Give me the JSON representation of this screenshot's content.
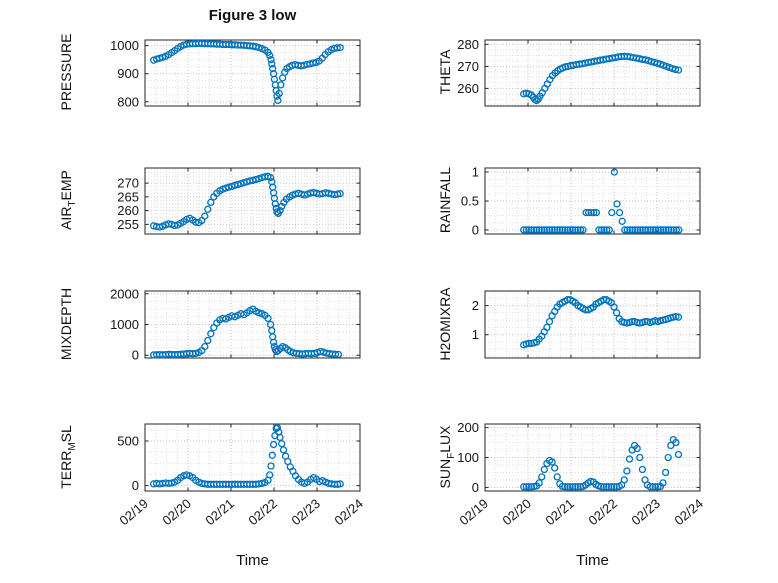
{
  "figure": {
    "title": "Figure 3 low",
    "xlabel": "Time",
    "accent": "#0072BD",
    "grid_color": "#d9d9d9",
    "xlim": [
      19,
      24
    ],
    "x_ticks": [
      19,
      20,
      21,
      22,
      23,
      24
    ],
    "x_tick_labels": [
      "02/19",
      "02/20",
      "02/21",
      "02/22",
      "02/23",
      "02/24"
    ]
  },
  "chart_data": [
    {
      "type": "scatter",
      "name": "PRESSURE",
      "ylabel": {
        "pre": "PRESSURE",
        "sub": "",
        "post": ""
      },
      "ylim": [
        785,
        1020
      ],
      "yticks": [
        800,
        900,
        1000
      ],
      "ytick_labels": [
        "800",
        "900",
        "1000"
      ],
      "x": [
        19.2,
        19.27,
        19.34,
        19.41,
        19.48,
        19.55,
        19.62,
        19.69,
        19.76,
        19.83,
        19.9,
        19.97,
        20.04,
        20.11,
        20.18,
        20.25,
        20.32,
        20.39,
        20.46,
        20.53,
        20.6,
        20.67,
        20.74,
        20.81,
        20.88,
        20.95,
        21.02,
        21.09,
        21.16,
        21.23,
        21.3,
        21.37,
        21.44,
        21.51,
        21.58,
        21.65,
        21.72,
        21.79,
        21.86,
        21.9,
        21.93,
        21.95,
        21.97,
        21.99,
        22.01,
        22.03,
        22.05,
        22.07,
        22.09,
        22.12,
        22.16,
        22.2,
        22.25,
        22.3,
        22.36,
        22.42,
        22.49,
        22.56,
        22.63,
        22.7,
        22.77,
        22.84,
        22.91,
        22.98,
        23.05,
        23.12,
        23.19,
        23.26,
        23.33,
        23.4,
        23.47,
        23.54
      ],
      "y": [
        948,
        952,
        955,
        958,
        962,
        968,
        975,
        982,
        990,
        997,
        1002,
        1005,
        1006,
        1007,
        1007,
        1008,
        1008,
        1007,
        1007,
        1006,
        1006,
        1005,
        1005,
        1004,
        1004,
        1004,
        1003,
        1003,
        1002,
        1002,
        1001,
        1000,
        999,
        998,
        996,
        993,
        989,
        984,
        976,
        965,
        950,
        935,
        918,
        900,
        880,
        860,
        840,
        820,
        805,
        830,
        860,
        885,
        905,
        918,
        925,
        930,
        932,
        930,
        928,
        930,
        933,
        935,
        938,
        940,
        945,
        955,
        968,
        978,
        985,
        990,
        992,
        993
      ]
    },
    {
      "type": "scatter",
      "name": "THETA",
      "ylabel": {
        "pre": "THETA",
        "sub": "",
        "post": ""
      },
      "ylim": [
        252,
        282
      ],
      "yticks": [
        260,
        270,
        280
      ],
      "ytick_labels": [
        "260",
        "270",
        "280"
      ],
      "x": [
        19.9,
        19.96,
        20.02,
        20.08,
        20.12,
        20.16,
        20.2,
        20.24,
        20.28,
        20.33,
        20.39,
        20.45,
        20.51,
        20.57,
        20.63,
        20.69,
        20.75,
        20.81,
        20.87,
        20.93,
        20.99,
        21.05,
        21.12,
        21.19,
        21.26,
        21.33,
        21.4,
        21.47,
        21.54,
        21.61,
        21.68,
        21.75,
        21.82,
        21.89,
        21.96,
        22.03,
        22.1,
        22.17,
        22.24,
        22.31,
        22.38,
        22.45,
        22.52,
        22.59,
        22.66,
        22.73,
        22.8,
        22.87,
        22.94,
        23.01,
        23.08,
        23.15,
        23.22,
        23.29,
        23.36,
        23.43,
        23.5
      ],
      "y": [
        257.5,
        257.8,
        257.5,
        257.0,
        256.0,
        255.0,
        254.5,
        255.2,
        256.5,
        258.0,
        260.0,
        262.0,
        264.0,
        265.8,
        267.0,
        268.0,
        268.8,
        269.3,
        269.8,
        270.0,
        270.3,
        270.5,
        270.8,
        271.0,
        271.2,
        271.5,
        271.8,
        272.0,
        272.3,
        272.5,
        272.8,
        273.0,
        273.3,
        273.5,
        273.8,
        274.0,
        274.3,
        274.5,
        274.6,
        274.5,
        274.3,
        274.0,
        273.8,
        273.5,
        273.2,
        273.0,
        272.6,
        272.2,
        271.8,
        271.4,
        271.0,
        270.5,
        270.0,
        269.5,
        269.0,
        268.6,
        268.3
      ]
    },
    {
      "type": "scatter",
      "name": "AIR_TEMP",
      "ylabel": {
        "pre": "AIR",
        "sub": "T",
        "post": "EMP"
      },
      "ylim": [
        251.5,
        275.5
      ],
      "yticks": [
        255,
        260,
        265,
        270
      ],
      "ytick_labels": [
        "255",
        "260",
        "265",
        "270"
      ],
      "x": [
        19.2,
        19.27,
        19.34,
        19.41,
        19.48,
        19.55,
        19.62,
        19.69,
        19.76,
        19.83,
        19.9,
        19.97,
        20.04,
        20.11,
        20.18,
        20.25,
        20.32,
        20.39,
        20.46,
        20.53,
        20.6,
        20.67,
        20.74,
        20.81,
        20.88,
        20.95,
        21.02,
        21.09,
        21.16,
        21.23,
        21.3,
        21.37,
        21.44,
        21.51,
        21.58,
        21.65,
        21.72,
        21.79,
        21.86,
        21.92,
        21.95,
        21.97,
        21.99,
        22.01,
        22.03,
        22.05,
        22.07,
        22.1,
        22.14,
        22.18,
        22.23,
        22.29,
        22.36,
        22.43,
        22.5,
        22.57,
        22.64,
        22.71,
        22.78,
        22.85,
        22.92,
        22.99,
        23.06,
        23.13,
        23.2,
        23.27,
        23.34,
        23.41,
        23.48,
        23.54
      ],
      "y": [
        254.5,
        254.2,
        254.0,
        254.3,
        254.8,
        255.2,
        255.0,
        254.6,
        254.8,
        255.4,
        256.0,
        256.8,
        257.2,
        256.6,
        255.8,
        255.6,
        256.4,
        258.0,
        260.5,
        263.0,
        265.0,
        266.3,
        267.2,
        267.8,
        268.2,
        268.5,
        268.8,
        269.2,
        269.5,
        269.8,
        270.2,
        270.5,
        270.8,
        271.0,
        271.3,
        271.6,
        272.0,
        272.3,
        272.5,
        272.0,
        270.5,
        268.5,
        266.5,
        264.5,
        262.5,
        260.8,
        259.5,
        259.0,
        260.0,
        261.5,
        263.0,
        264.2,
        265.0,
        265.6,
        266.0,
        266.3,
        266.0,
        265.7,
        266.0,
        266.4,
        266.6,
        266.3,
        266.0,
        266.2,
        266.5,
        266.3,
        266.0,
        265.8,
        266.0,
        266.2
      ]
    },
    {
      "type": "scatter",
      "name": "RAINFALL",
      "ylabel": {
        "pre": "RAINFALL",
        "sub": "",
        "post": ""
      },
      "ylim": [
        -0.07,
        1.07
      ],
      "yticks": [
        0,
        0.5,
        1
      ],
      "ytick_labels": [
        "0",
        "0.5",
        "1"
      ],
      "x": [
        19.9,
        19.96,
        20.02,
        20.08,
        20.14,
        20.2,
        20.26,
        20.32,
        20.38,
        20.44,
        20.5,
        20.56,
        20.62,
        20.68,
        20.74,
        20.8,
        20.86,
        20.92,
        20.98,
        21.04,
        21.1,
        21.16,
        21.22,
        21.28,
        21.35,
        21.41,
        21.47,
        21.53,
        21.59,
        21.65,
        21.71,
        21.77,
        21.83,
        21.89,
        21.95,
        22.01,
        22.07,
        22.13,
        22.19,
        22.25,
        22.31,
        22.37,
        22.43,
        22.49,
        22.55,
        22.61,
        22.67,
        22.73,
        22.79,
        22.85,
        22.91,
        22.97,
        23.03,
        23.09,
        23.15,
        23.21,
        23.27,
        23.33,
        23.39,
        23.45,
        23.51
      ],
      "y": [
        0,
        0,
        0,
        0,
        0,
        0,
        0,
        0,
        0,
        0,
        0,
        0,
        0,
        0,
        0,
        0,
        0,
        0,
        0,
        0,
        0,
        0,
        0,
        0,
        0.3,
        0.3,
        0.3,
        0.3,
        0.3,
        0,
        0,
        0,
        0,
        0,
        0.3,
        1,
        0.45,
        0.3,
        0.15,
        0,
        0,
        0,
        0,
        0,
        0,
        0,
        0,
        0,
        0,
        0,
        0,
        0,
        0,
        0,
        0,
        0,
        0,
        0,
        0,
        0,
        0
      ]
    },
    {
      "type": "scatter",
      "name": "MIXDEPTH",
      "ylabel": {
        "pre": "MIXDEPTH",
        "sub": "",
        "post": ""
      },
      "ylim": [
        -90,
        2090
      ],
      "yticks": [
        0,
        1000,
        2000
      ],
      "ytick_labels": [
        "0",
        "1000",
        "2000"
      ],
      "x": [
        19.2,
        19.27,
        19.34,
        19.41,
        19.48,
        19.55,
        19.62,
        19.69,
        19.76,
        19.83,
        19.9,
        19.97,
        20.04,
        20.11,
        20.18,
        20.25,
        20.32,
        20.39,
        20.46,
        20.53,
        20.6,
        20.67,
        20.74,
        20.81,
        20.88,
        20.95,
        21.02,
        21.09,
        21.16,
        21.23,
        21.3,
        21.37,
        21.44,
        21.51,
        21.58,
        21.65,
        21.72,
        21.79,
        21.86,
        21.92,
        21.95,
        21.97,
        21.99,
        22.01,
        22.03,
        22.06,
        22.1,
        22.15,
        22.2,
        22.26,
        22.32,
        22.38,
        22.45,
        22.52,
        22.59,
        22.66,
        22.73,
        22.8,
        22.87,
        22.94,
        23.01,
        23.08,
        23.15,
        23.22,
        23.29,
        23.36,
        23.43,
        23.5
      ],
      "y": [
        10,
        15,
        20,
        15,
        20,
        30,
        25,
        20,
        25,
        30,
        40,
        50,
        60,
        50,
        60,
        90,
        150,
        280,
        480,
        700,
        900,
        1050,
        1150,
        1200,
        1180,
        1230,
        1280,
        1250,
        1300,
        1350,
        1320,
        1380,
        1450,
        1500,
        1430,
        1380,
        1350,
        1300,
        1200,
        1000,
        800,
        600,
        420,
        280,
        180,
        120,
        150,
        220,
        280,
        250,
        180,
        120,
        80,
        60,
        50,
        40,
        50,
        60,
        50,
        60,
        90,
        120,
        100,
        70,
        50,
        40,
        30,
        25
      ]
    },
    {
      "type": "scatter",
      "name": "H2OMIXRA",
      "ylabel": {
        "pre": "H2OMIXRA",
        "sub": "",
        "post": ""
      },
      "ylim": [
        0.2,
        2.5
      ],
      "yticks": [
        1,
        2
      ],
      "ytick_labels": [
        "1",
        "2"
      ],
      "x": [
        19.9,
        19.96,
        20.02,
        20.08,
        20.14,
        20.2,
        20.26,
        20.32,
        20.38,
        20.44,
        20.5,
        20.56,
        20.62,
        20.68,
        20.74,
        20.8,
        20.86,
        20.92,
        20.98,
        21.04,
        21.1,
        21.16,
        21.22,
        21.28,
        21.34,
        21.4,
        21.46,
        21.52,
        21.58,
        21.64,
        21.7,
        21.76,
        21.82,
        21.88,
        21.94,
        22.0,
        22.06,
        22.12,
        22.18,
        22.24,
        22.3,
        22.36,
        22.42,
        22.48,
        22.54,
        22.6,
        22.66,
        22.72,
        22.78,
        22.84,
        22.9,
        22.96,
        23.02,
        23.08,
        23.14,
        23.2,
        23.26,
        23.32,
        23.38,
        23.44,
        23.5
      ],
      "y": [
        0.65,
        0.68,
        0.7,
        0.7,
        0.72,
        0.75,
        0.85,
        0.95,
        1.1,
        1.25,
        1.45,
        1.65,
        1.8,
        1.95,
        2.05,
        2.1,
        2.15,
        2.2,
        2.2,
        2.15,
        2.1,
        2.0,
        1.95,
        1.9,
        1.85,
        1.85,
        1.9,
        1.95,
        2.05,
        2.1,
        2.15,
        2.2,
        2.2,
        2.15,
        2.1,
        1.95,
        1.75,
        1.55,
        1.45,
        1.42,
        1.4,
        1.42,
        1.45,
        1.45,
        1.42,
        1.4,
        1.42,
        1.45,
        1.45,
        1.42,
        1.45,
        1.48,
        1.45,
        1.48,
        1.5,
        1.52,
        1.55,
        1.58,
        1.6,
        1.62,
        1.6
      ]
    },
    {
      "type": "scatter",
      "name": "TERR_MSL",
      "ylabel": {
        "pre": "TERR",
        "sub": "M",
        "post": "SL"
      },
      "ylim": [
        -60,
        690
      ],
      "yticks": [
        0,
        500
      ],
      "ytick_labels": [
        "0",
        "500"
      ],
      "x": [
        19.2,
        19.27,
        19.34,
        19.41,
        19.48,
        19.55,
        19.62,
        19.69,
        19.76,
        19.83,
        19.9,
        19.97,
        20.04,
        20.11,
        20.18,
        20.25,
        20.32,
        20.39,
        20.46,
        20.53,
        20.6,
        20.67,
        20.74,
        20.81,
        20.88,
        20.95,
        21.02,
        21.09,
        21.16,
        21.23,
        21.3,
        21.37,
        21.44,
        21.51,
        21.58,
        21.65,
        21.72,
        21.79,
        21.86,
        21.9,
        21.93,
        21.96,
        21.99,
        22.02,
        22.05,
        22.08,
        22.11,
        22.14,
        22.18,
        22.22,
        22.27,
        22.32,
        22.38,
        22.44,
        22.5,
        22.57,
        22.64,
        22.71,
        22.78,
        22.85,
        22.92,
        22.99,
        23.06,
        23.13,
        23.2,
        23.27,
        23.34,
        23.41,
        23.48,
        23.54
      ],
      "y": [
        20,
        25,
        20,
        25,
        30,
        25,
        30,
        40,
        60,
        90,
        110,
        120,
        110,
        90,
        60,
        40,
        25,
        20,
        15,
        15,
        15,
        15,
        15,
        15,
        15,
        15,
        15,
        15,
        15,
        15,
        15,
        15,
        15,
        15,
        15,
        20,
        25,
        35,
        60,
        120,
        220,
        340,
        460,
        560,
        640,
        650,
        600,
        540,
        470,
        400,
        330,
        270,
        210,
        160,
        110,
        70,
        40,
        25,
        40,
        70,
        90,
        70,
        45,
        55,
        40,
        25,
        20,
        15,
        15,
        20
      ]
    },
    {
      "type": "scatter",
      "name": "SUN_FLUX",
      "ylabel": {
        "pre": "SUN",
        "sub": "F",
        "post": "LUX"
      },
      "ylim": [
        -12,
        212
      ],
      "yticks": [
        0,
        100,
        200
      ],
      "ytick_labels": [
        "0",
        "100",
        "200"
      ],
      "x": [
        19.9,
        19.96,
        20.02,
        20.08,
        20.14,
        20.2,
        20.26,
        20.32,
        20.38,
        20.44,
        20.5,
        20.56,
        20.62,
        20.68,
        20.74,
        20.8,
        20.86,
        20.92,
        20.98,
        21.04,
        21.1,
        21.16,
        21.22,
        21.28,
        21.34,
        21.4,
        21.46,
        21.52,
        21.58,
        21.64,
        21.7,
        21.76,
        21.82,
        21.88,
        21.94,
        22.0,
        22.06,
        22.12,
        22.18,
        22.24,
        22.3,
        22.36,
        22.42,
        22.48,
        22.54,
        22.6,
        22.66,
        22.72,
        22.78,
        22.84,
        22.9,
        22.96,
        23.02,
        23.08,
        23.14,
        23.2,
        23.26,
        23.32,
        23.38,
        23.44,
        23.5
      ],
      "y": [
        2,
        2,
        2,
        2,
        3,
        5,
        15,
        35,
        60,
        80,
        90,
        85,
        65,
        35,
        12,
        3,
        2,
        2,
        2,
        2,
        2,
        2,
        2,
        3,
        8,
        15,
        20,
        18,
        10,
        5,
        2,
        2,
        2,
        2,
        2,
        2,
        2,
        3,
        8,
        25,
        55,
        95,
        125,
        140,
        130,
        100,
        60,
        25,
        8,
        2,
        2,
        2,
        2,
        3,
        15,
        50,
        100,
        140,
        160,
        150,
        110
      ]
    }
  ]
}
